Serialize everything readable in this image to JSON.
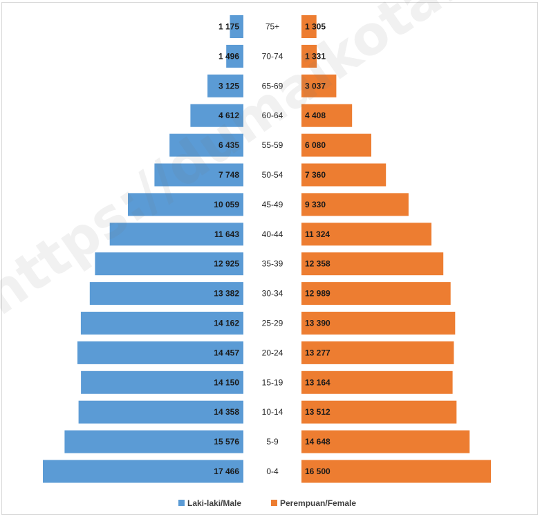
{
  "chart_data": {
    "type": "bar",
    "orientation": "horizontal-population-pyramid",
    "categories": [
      "75+",
      "70-74",
      "65-69",
      "60-64",
      "55-59",
      "50-54",
      "45-49",
      "40-44",
      "35-39",
      "30-34",
      "25-29",
      "20-24",
      "15-19",
      "10-14",
      "5-9",
      "0-4"
    ],
    "series": [
      {
        "name": "Laki-laki/Male",
        "color": "#5b9bd5",
        "values": [
          1175,
          1496,
          3125,
          4612,
          6435,
          7748,
          10059,
          11643,
          12925,
          13382,
          14162,
          14457,
          14150,
          14358,
          15576,
          17466
        ],
        "labels": [
          "1 175",
          "1 496",
          "3 125",
          "4 612",
          "6 435",
          "7 748",
          "10 059",
          "11 643",
          "12 925",
          "13 382",
          "14 162",
          "14 457",
          "14 150",
          "14 358",
          "15 576",
          "17 466"
        ]
      },
      {
        "name": "Perempuan/Female",
        "color": "#ed7d31",
        "values": [
          1305,
          1331,
          3037,
          4408,
          6080,
          7360,
          9330,
          11324,
          12358,
          12989,
          13390,
          13277,
          13164,
          13512,
          14648,
          16500
        ],
        "labels": [
          "1 305",
          "1 331",
          "3 037",
          "4 408",
          "6 080",
          "7 360",
          "9 330",
          "11 324",
          "12 358",
          "12 989",
          "13 390",
          "13 277",
          "13 164",
          "13 512",
          "14 648",
          "16 500"
        ]
      }
    ],
    "legend_position": "bottom",
    "grid": false
  },
  "watermark": "https://dumaikota.bps.go.id"
}
